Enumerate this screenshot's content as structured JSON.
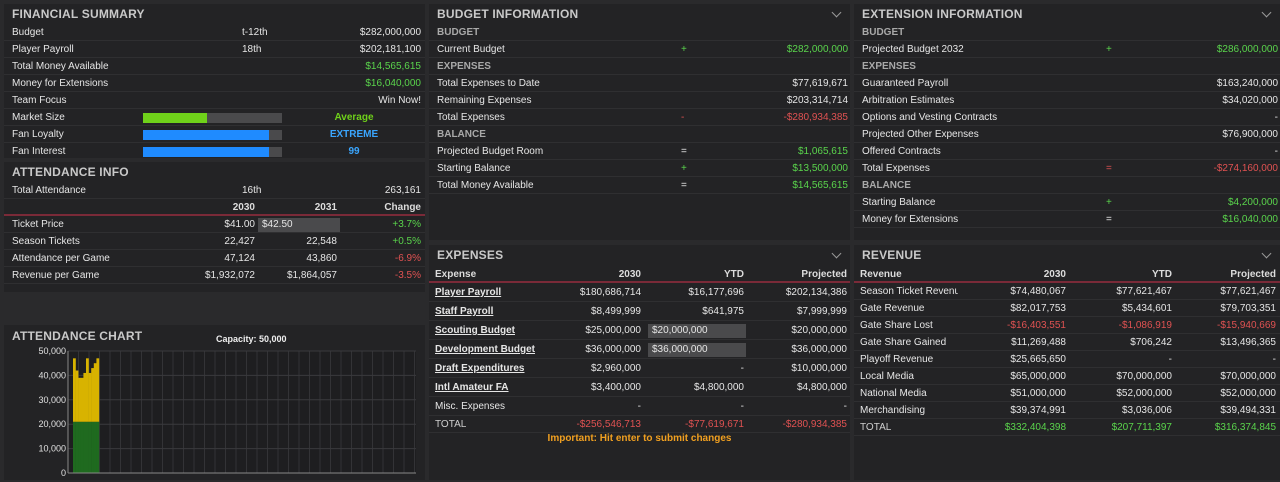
{
  "financial_summary": {
    "title": "FINANCIAL SUMMARY",
    "rows": [
      {
        "label": "Budget",
        "mid": "t-12th",
        "value": "$282,000,000",
        "color": "white"
      },
      {
        "label": "Player Payroll",
        "mid": "18th",
        "value": "$202,181,100",
        "color": "white"
      },
      {
        "label": "Total Money Available",
        "mid": "",
        "value": "$14,565,615",
        "color": "green"
      },
      {
        "label": "Money for Extensions",
        "mid": "",
        "value": "$16,040,000",
        "color": "green"
      },
      {
        "label": "Team Focus",
        "mid": "",
        "value": "Win Now!",
        "color": "white"
      }
    ],
    "bars": [
      {
        "label": "Market Size",
        "level": 0.46,
        "fill": "#6fd11a",
        "text": "Average",
        "text_color": "#6fd11a"
      },
      {
        "label": "Fan Loyalty",
        "level": 0.91,
        "fill": "#1f8bff",
        "text": "EXTREME",
        "text_color": "#3aa6ff"
      },
      {
        "label": "Fan Interest",
        "level": 0.91,
        "fill": "#1f8bff",
        "text": "99",
        "text_color": "#3aa6ff"
      }
    ]
  },
  "attendance_info": {
    "title": "ATTENDANCE INFO",
    "total_label": "Total Attendance",
    "total_rank": "16th",
    "total_value": "263,161",
    "col_2030": "2030",
    "col_2031": "2031",
    "col_change": "Change",
    "rows": [
      {
        "label": "Ticket Price",
        "v2030": "$41.00",
        "v2031": "$42.50",
        "change": "+3.7%",
        "color": "green",
        "input": true
      },
      {
        "label": "Season Tickets",
        "v2030": "22,427",
        "v2031": "22,548",
        "change": "+0.5%",
        "color": "green",
        "input": false
      },
      {
        "label": "Attendance per Game",
        "v2030": "47,124",
        "v2031": "43,860",
        "change": "-6.9%",
        "color": "red",
        "input": false
      },
      {
        "label": "Revenue per Game",
        "v2030": "$1,932,072",
        "v2031": "$1,864,057",
        "change": "-3.5%",
        "color": "red",
        "input": false
      }
    ]
  },
  "attendance_chart": {
    "title": "ATTENDANCE CHART",
    "capacity_label": "Capacity: 50,000",
    "chart_data": {
      "type": "bar",
      "ylim": [
        0,
        50000
      ],
      "yticks": [
        "50,000",
        "40,000",
        "30,000",
        "20,000",
        "10,000",
        "0"
      ],
      "stack": [
        {
          "name": "",
          "color": "#1f6a1f",
          "values": [
            21000,
            21000,
            21000,
            21000,
            21000,
            21000,
            21000,
            21000,
            21000,
            21000
          ]
        },
        {
          "name": "",
          "color": "#d8b300",
          "values": [
            26000,
            21000,
            18000,
            18000,
            20000,
            26000,
            20000,
            22000,
            24000,
            26000
          ]
        }
      ]
    }
  },
  "budget_info": {
    "title": "BUDGET INFORMATION",
    "sections": [
      {
        "name": "BUDGET",
        "rows": [
          {
            "label": "Current Budget",
            "sign": "+",
            "sign_color": "green",
            "value": "$282,000,000",
            "color": "green"
          }
        ]
      },
      {
        "name": "EXPENSES",
        "rows": [
          {
            "label": "Total Expenses to Date",
            "sign": "",
            "sign_color": "white",
            "value": "$77,619,671",
            "color": "white"
          },
          {
            "label": "Remaining Expenses",
            "sign": "",
            "sign_color": "white",
            "value": "$203,314,714",
            "color": "white"
          },
          {
            "label": "Total Expenses",
            "sign": "-",
            "sign_color": "red",
            "value": "-$280,934,385",
            "color": "red"
          }
        ]
      },
      {
        "name": "BALANCE",
        "rows": [
          {
            "label": "Projected Budget Room",
            "sign": "=",
            "sign_color": "white",
            "value": "$1,065,615",
            "color": "green"
          },
          {
            "label": "Starting Balance",
            "sign": "+",
            "sign_color": "green",
            "value": "$13,500,000",
            "color": "green"
          },
          {
            "label": "Total Money Available",
            "sign": "=",
            "sign_color": "white",
            "value": "$14,565,615",
            "color": "green"
          }
        ]
      }
    ]
  },
  "extension_info": {
    "title": "EXTENSION INFORMATION",
    "sections": [
      {
        "name": "BUDGET",
        "rows": [
          {
            "label": "Projected Budget 2032",
            "sign": "+",
            "sign_color": "green",
            "value": "$286,000,000",
            "color": "green"
          }
        ]
      },
      {
        "name": "EXPENSES",
        "rows": [
          {
            "label": "Guaranteed Payroll",
            "sign": "",
            "sign_color": "white",
            "value": "$163,240,000",
            "color": "white"
          },
          {
            "label": "Arbitration Estimates",
            "sign": "",
            "sign_color": "white",
            "value": "$34,020,000",
            "color": "white"
          },
          {
            "label": "Options and Vesting Contracts",
            "sign": "",
            "sign_color": "white",
            "value": "-",
            "color": "white"
          },
          {
            "label": "Projected Other Expenses",
            "sign": "",
            "sign_color": "white",
            "value": "$76,900,000",
            "color": "white"
          },
          {
            "label": "Offered Contracts",
            "sign": "",
            "sign_color": "white",
            "value": "-",
            "color": "white"
          },
          {
            "label": "Total Expenses",
            "sign": "=",
            "sign_color": "red",
            "value": "-$274,160,000",
            "color": "red"
          }
        ]
      },
      {
        "name": "BALANCE",
        "rows": [
          {
            "label": "Starting Balance",
            "sign": "+",
            "sign_color": "green",
            "value": "$4,200,000",
            "color": "green"
          },
          {
            "label": "Money for Extensions",
            "sign": "=",
            "sign_color": "white",
            "value": "$16,040,000",
            "color": "green"
          }
        ]
      }
    ]
  },
  "expenses": {
    "title": "EXPENSES",
    "headers": {
      "name": "Expense",
      "c2030": "2030",
      "ytd": "YTD",
      "projected": "Projected"
    },
    "rows": [
      {
        "name": "Player Payroll",
        "link": true,
        "c2030": "$180,686,714",
        "ytd": "$16,177,696",
        "ytd_input": false,
        "projected": "$202,134,386"
      },
      {
        "name": "Staff Payroll",
        "link": true,
        "c2030": "$8,499,999",
        "ytd": "$641,975",
        "ytd_input": false,
        "projected": "$7,999,999"
      },
      {
        "name": "Scouting Budget",
        "link": true,
        "c2030": "$25,000,000",
        "ytd": "$20,000,000",
        "ytd_input": true,
        "projected": "$20,000,000"
      },
      {
        "name": "Development Budget",
        "link": true,
        "c2030": "$36,000,000",
        "ytd": "$36,000,000",
        "ytd_input": true,
        "projected": "$36,000,000"
      },
      {
        "name": "Draft Expenditures",
        "link": true,
        "c2030": "$2,960,000",
        "ytd": "-",
        "ytd_input": false,
        "projected": "$10,000,000"
      },
      {
        "name": "Intl Amateur FA",
        "link": true,
        "c2030": "$3,400,000",
        "ytd": "$4,800,000",
        "ytd_input": false,
        "projected": "$4,800,000"
      },
      {
        "name": "Misc. Expenses",
        "link": false,
        "c2030": "-",
        "ytd": "-",
        "ytd_input": false,
        "projected": "-"
      }
    ],
    "total": {
      "name": "TOTAL",
      "c2030": "-$256,546,713",
      "ytd": "-$77,619,671",
      "projected": "-$280,934,385"
    },
    "note": "Important: Hit enter to submit changes"
  },
  "revenue": {
    "title": "REVENUE",
    "headers": {
      "name": "Revenue",
      "c2030": "2030",
      "ytd": "YTD",
      "projected": "Projected"
    },
    "rows": [
      {
        "name": "Season Ticket Revenue",
        "c2030": "$74,480,067",
        "ytd": "$77,621,467",
        "projected": "$77,621,467",
        "color": "white"
      },
      {
        "name": "Gate Revenue",
        "c2030": "$82,017,753",
        "ytd": "$5,434,601",
        "projected": "$79,703,351",
        "color": "white"
      },
      {
        "name": "Gate Share Lost",
        "c2030": "-$16,403,551",
        "ytd": "-$1,086,919",
        "projected": "-$15,940,669",
        "color": "red"
      },
      {
        "name": "Gate Share Gained",
        "c2030": "$11,269,488",
        "ytd": "$706,242",
        "projected": "$13,496,365",
        "color": "white"
      },
      {
        "name": "Playoff Revenue",
        "c2030": "$25,665,650",
        "ytd": "-",
        "projected": "-",
        "color": "white"
      },
      {
        "name": "Local Media",
        "c2030": "$65,000,000",
        "ytd": "$70,000,000",
        "projected": "$70,000,000",
        "color": "white"
      },
      {
        "name": "National Media",
        "c2030": "$51,000,000",
        "ytd": "$52,000,000",
        "projected": "$52,000,000",
        "color": "white"
      },
      {
        "name": "Merchandising",
        "c2030": "$39,374,991",
        "ytd": "$3,036,006",
        "projected": "$39,494,331",
        "color": "white"
      }
    ],
    "total": {
      "name": "TOTAL",
      "c2030": "$332,404,398",
      "ytd": "$207,711,397",
      "projected": "$316,374,845"
    }
  }
}
